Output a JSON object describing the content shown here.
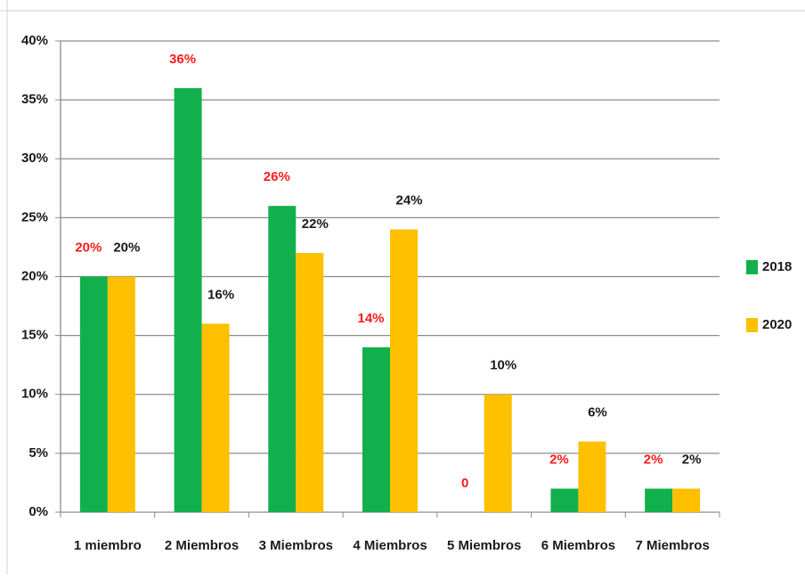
{
  "chart_data": {
    "type": "bar",
    "categories": [
      "1 miembro",
      "2 Miembros",
      "3 Miembros",
      "4 Miembros",
      "5 Miembros",
      "6 Miembros",
      "7 Miembros"
    ],
    "series": [
      {
        "name": "2018",
        "color": "#12b04c",
        "label_color": "#ff1a1a",
        "values": [
          20,
          36,
          26,
          14,
          0,
          2,
          2
        ],
        "value_labels": [
          "20%",
          "36%",
          "26%",
          "14%",
          "0",
          "2%",
          "2%"
        ]
      },
      {
        "name": "2020",
        "color": "#ffc000",
        "label_color": "#1a1a1a",
        "values": [
          20,
          16,
          22,
          24,
          10,
          6,
          2
        ],
        "value_labels": [
          "20%",
          "16%",
          "22%",
          "24%",
          "10%",
          "6%",
          "2%"
        ]
      }
    ],
    "ylim": [
      0,
      40
    ],
    "yticks": [
      {
        "value": 0,
        "label": "0%"
      },
      {
        "value": 5,
        "label": "5%"
      },
      {
        "value": 10,
        "label": "10%"
      },
      {
        "value": 15,
        "label": "15%"
      },
      {
        "value": 20,
        "label": "20%"
      },
      {
        "value": 25,
        "label": "25%"
      },
      {
        "value": 30,
        "label": "30%"
      },
      {
        "value": 35,
        "label": "35%"
      },
      {
        "value": 40,
        "label": "40%"
      }
    ],
    "grid": true,
    "legend": "right"
  }
}
